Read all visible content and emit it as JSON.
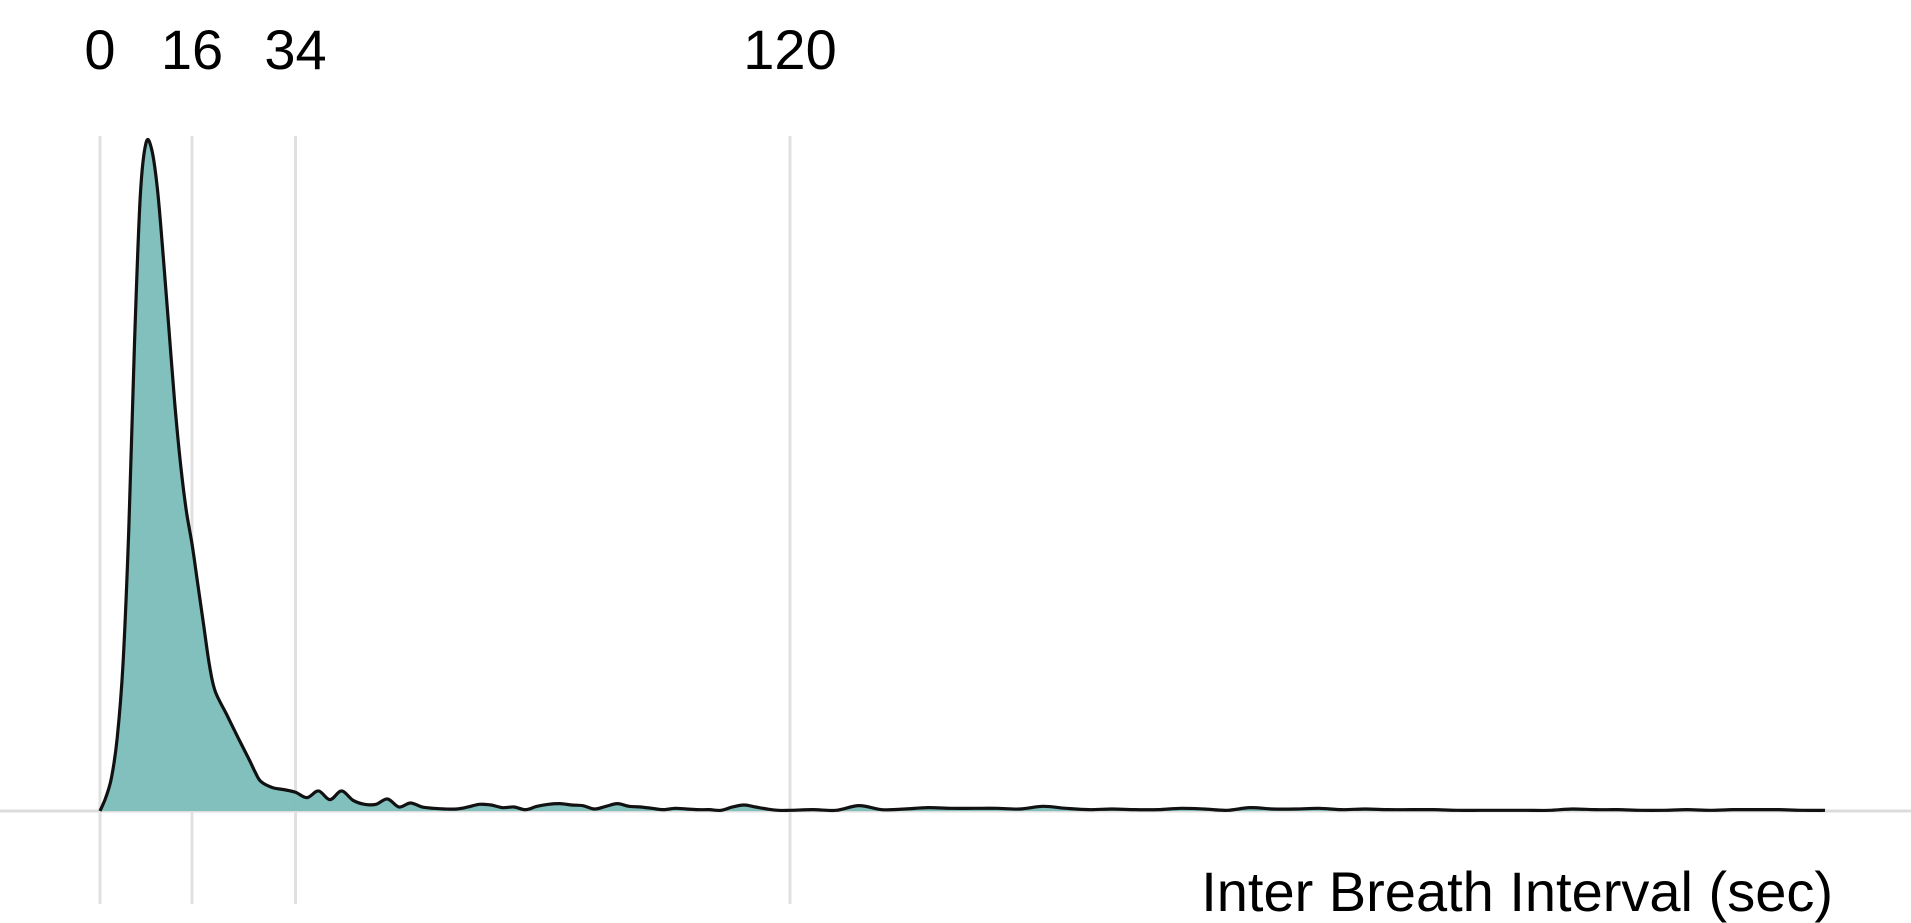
{
  "chart_data": {
    "type": "area",
    "title": "",
    "xlabel": "Inter Breath Interval (sec)",
    "ylabel": "",
    "xlim": [
      0,
      300
    ],
    "ylim": [
      0,
      1
    ],
    "grid": true,
    "x_ticks": [
      0,
      16,
      34,
      120
    ],
    "x_tick_labels": [
      "0",
      "16",
      "34",
      "120"
    ],
    "x_tick_position": "top",
    "colors": {
      "fill": "#7bbdb9",
      "line": "#111111",
      "grid": "#e0e0e0",
      "baseline": "#dcdcdc"
    },
    "series": [
      {
        "x": [
          0,
          1,
          2,
          3,
          4,
          5,
          6,
          7,
          8,
          9,
          10,
          11,
          12,
          13,
          14,
          15,
          16,
          17,
          18,
          19,
          20,
          22,
          24,
          26,
          27,
          28,
          30,
          32,
          34,
          36,
          38,
          40,
          42,
          44,
          46,
          48,
          50,
          52,
          54,
          56,
          58,
          60,
          62,
          64,
          66,
          68,
          70,
          72,
          74,
          76,
          78,
          80,
          82,
          84,
          86,
          88,
          90,
          92,
          94,
          96,
          98,
          100,
          102,
          104,
          106,
          108,
          110,
          112,
          114,
          116,
          118,
          120,
          124,
          128,
          132,
          136,
          140,
          144,
          148,
          152,
          156,
          160,
          164,
          168,
          172,
          176,
          180,
          184,
          188,
          192,
          196,
          200,
          204,
          208,
          212,
          216,
          220,
          224,
          228,
          232,
          236,
          240,
          244,
          248,
          252,
          256,
          260,
          264,
          268,
          272,
          276,
          280,
          284,
          288,
          292,
          296,
          300
        ],
        "values": [
          0.0,
          0.02,
          0.05,
          0.11,
          0.22,
          0.42,
          0.7,
          0.92,
          1.0,
          0.99,
          0.93,
          0.83,
          0.72,
          0.61,
          0.52,
          0.45,
          0.4,
          0.34,
          0.28,
          0.22,
          0.18,
          0.145,
          0.11,
          0.076,
          0.058,
          0.044,
          0.035,
          0.032,
          0.028,
          0.02,
          0.03,
          0.017,
          0.03,
          0.016,
          0.01,
          0.01,
          0.018,
          0.006,
          0.012,
          0.006,
          0.004,
          0.003,
          0.003,
          0.006,
          0.01,
          0.009,
          0.005,
          0.006,
          0.002,
          0.007,
          0.01,
          0.011,
          0.009,
          0.008,
          0.003,
          0.007,
          0.011,
          0.007,
          0.006,
          0.004,
          0.002,
          0.004,
          0.003,
          0.002,
          0.002,
          0.001,
          0.006,
          0.009,
          0.006,
          0.003,
          0.001,
          0.001,
          0.002,
          0.001,
          0.008,
          0.002,
          0.003,
          0.005,
          0.004,
          0.004,
          0.004,
          0.003,
          0.007,
          0.004,
          0.002,
          0.003,
          0.002,
          0.002,
          0.004,
          0.003,
          0.001,
          0.005,
          0.003,
          0.003,
          0.004,
          0.002,
          0.003,
          0.002,
          0.002,
          0.002,
          0.001,
          0.001,
          0.001,
          0.001,
          0.001,
          0.003,
          0.002,
          0.002,
          0.001,
          0.001,
          0.002,
          0.001,
          0.002,
          0.002,
          0.002,
          0.001,
          0.001
        ]
      }
    ]
  }
}
